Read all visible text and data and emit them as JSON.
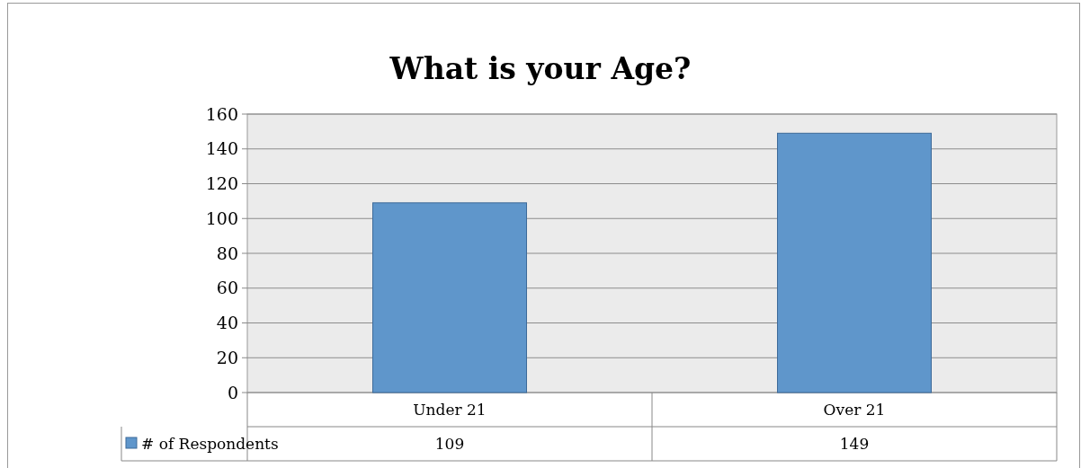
{
  "chart_data": {
    "type": "bar",
    "title": "What is your Age?",
    "categories": [
      "Under 21",
      "Over 21"
    ],
    "series": [
      {
        "name": "# of Respondents",
        "color": "#5f96cb",
        "values": [
          109,
          149
        ]
      }
    ],
    "ylim": [
      0,
      160
    ],
    "yticks": [
      0,
      20,
      40,
      60,
      80,
      100,
      120,
      140,
      160
    ],
    "grid": "y",
    "data_labels": true,
    "legend": "bottom left"
  }
}
